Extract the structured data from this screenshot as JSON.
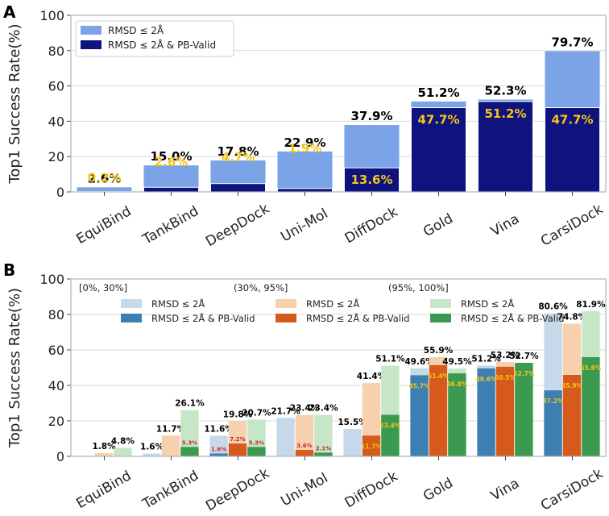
{
  "figure": {
    "panel_a_label": "A",
    "panel_b_label": "B"
  },
  "chart_data": [
    {
      "type": "bar",
      "panel": "A",
      "title": "",
      "xlabel": "",
      "ylabel": "Top1 Success Rate(%)",
      "ylim": [
        0,
        100
      ],
      "yticks": [
        "0",
        "20",
        "40",
        "60",
        "80",
        "100"
      ],
      "grid": true,
      "legend_position": "top-left",
      "categories": [
        "EquiBind",
        "TankBind",
        "DeepDock",
        "Uni-Mol",
        "DiffDock",
        "Gold",
        "Vina",
        "CarsiDock"
      ],
      "series": [
        {
          "name": "RMSD ≤ 2Å",
          "color": "#7ba3e8",
          "values": [
            2.6,
            15.0,
            17.8,
            22.9,
            37.9,
            51.2,
            52.3,
            79.7
          ],
          "labels": [
            "2.6%",
            "15.0%",
            "17.8%",
            "22.9%",
            "37.9%",
            "51.2%",
            "52.3%",
            "79.7%"
          ]
        },
        {
          "name": "RMSD ≤ 2Å & PB-Valid",
          "color": "#0f137e",
          "values": [
            0.2,
            2.6,
            4.7,
            1.9,
            13.6,
            47.7,
            51.2,
            47.7
          ],
          "labels": [
            "0.2%",
            "2.6%",
            "4.7%",
            "1.9%",
            "13.6%",
            "47.7%",
            "51.2%",
            "47.7%"
          ],
          "label_color": "#f5c518"
        }
      ]
    },
    {
      "type": "bar",
      "panel": "B",
      "title": "",
      "xlabel": "",
      "ylabel": "Top1 Success Rate(%)",
      "ylim": [
        0,
        100
      ],
      "yticks": [
        "0",
        "20",
        "40",
        "60",
        "80",
        "100"
      ],
      "grid": true,
      "legend_position": "top",
      "categories": [
        "EquiBind",
        "TankBind",
        "DeepDock",
        "Uni-Mol",
        "DiffDock",
        "Gold",
        "Vina",
        "CarsiDock"
      ],
      "groups": [
        {
          "name": "[0%, 30%]",
          "light_color": "#c6d9ea",
          "dark_color": "#3c7fb1",
          "label_color": "#f5c518",
          "rmsd": [
            0.0,
            1.6,
            11.6,
            21.7,
            15.5,
            49.6,
            51.2,
            80.6
          ],
          "rmsd_labels": [
            "",
            "1.6%",
            "11.6%",
            "21.7%",
            "15.5%",
            "49.6%",
            "51.2%",
            "80.6%"
          ],
          "pb": [
            0.0,
            0.0,
            1.6,
            0.0,
            0.0,
            45.7,
            49.6,
            37.2
          ],
          "pb_labels": [
            "",
            "",
            "1.6%",
            "",
            "",
            "45.7%",
            "49.6%",
            "37.2%"
          ]
        },
        {
          "name": "(30%, 95%]",
          "light_color": "#f7d0ae",
          "dark_color": "#d55a1c",
          "label_color": "#f5c518",
          "rmsd": [
            1.8,
            11.7,
            19.8,
            23.4,
            41.4,
            55.9,
            53.2,
            74.8
          ],
          "rmsd_labels": [
            "1.8%",
            "11.7%",
            "19.8%",
            "23.4%",
            "41.4%",
            "55.9%",
            "53.2%",
            "74.8%"
          ],
          "pb": [
            0.0,
            0.0,
            7.2,
            3.6,
            11.7,
            51.4,
            50.5,
            45.9
          ],
          "pb_labels": [
            "",
            "",
            "7.2%",
            "3.6%",
            "11.7%",
            "51.4%",
            "50.5%",
            "45.9%"
          ]
        },
        {
          "name": "(95%, 100%]",
          "light_color": "#c6e7c7",
          "dark_color": "#3c9a50",
          "label_color": "#f5c518",
          "rmsd": [
            4.8,
            26.1,
            20.7,
            23.4,
            51.1,
            49.5,
            52.7,
            81.9
          ],
          "rmsd_labels": [
            "4.8%",
            "26.1%",
            "20.7%",
            "23.4%",
            "51.1%",
            "49.5%",
            "52.7%",
            "81.9%"
          ],
          "pb": [
            0.0,
            5.3,
            5.3,
            2.1,
            23.4,
            46.8,
            52.7,
            55.9
          ],
          "pb_labels": [
            "",
            "5.3%",
            "5.3%",
            "2.1%",
            "23.4%",
            "46.8%",
            "52.7%",
            "55.9%"
          ]
        }
      ],
      "legend_entries": {
        "rmsd": "RMSD ≤ 2Å",
        "pb": "RMSD ≤ 2Å & PB-Valid"
      }
    }
  ]
}
